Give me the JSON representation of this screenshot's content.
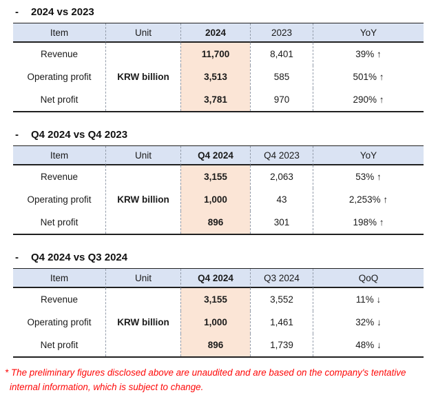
{
  "colors": {
    "header_bg": "#dae3f3",
    "highlight_bg": "#fbe5d6",
    "rule": "#1f1f1f",
    "divider": "#939caa",
    "text": "#1a1a1a",
    "footnote": "#fe0808"
  },
  "tables": [
    {
      "bullet": "-",
      "title": "2024 vs 2023",
      "columns": [
        "Item",
        "Unit",
        "2024",
        "2023",
        "YoY"
      ],
      "unit": "KRW billion",
      "rows": [
        {
          "item": "Revenue",
          "current": "11,700",
          "previous": "8,401",
          "change": "39% ↑"
        },
        {
          "item": "Operating profit",
          "current": "3,513",
          "previous": "585",
          "change": "501% ↑"
        },
        {
          "item": "Net profit",
          "current": "3,781",
          "previous": "970",
          "change": "290% ↑"
        }
      ]
    },
    {
      "bullet": "-",
      "title": "Q4 2024 vs Q4 2023",
      "columns": [
        "Item",
        "Unit",
        "Q4 2024",
        "Q4 2023",
        "YoY"
      ],
      "unit": "KRW billion",
      "rows": [
        {
          "item": "Revenue",
          "current": "3,155",
          "previous": "2,063",
          "change": "53% ↑"
        },
        {
          "item": "Operating profit",
          "current": "1,000",
          "previous": "43",
          "change": "2,253% ↑"
        },
        {
          "item": "Net profit",
          "current": "896",
          "previous": "301",
          "change": "198% ↑"
        }
      ]
    },
    {
      "bullet": "-",
      "title": "Q4 2024 vs Q3 2024",
      "columns": [
        "Item",
        "Unit",
        "Q4 2024",
        "Q3 2024",
        "QoQ"
      ],
      "unit": "KRW billion",
      "rows": [
        {
          "item": "Revenue",
          "current": "3,155",
          "previous": "3,552",
          "change": "11% ↓"
        },
        {
          "item": "Operating profit",
          "current": "1,000",
          "previous": "1,461",
          "change": "32% ↓"
        },
        {
          "item": "Net profit",
          "current": "896",
          "previous": "1,739",
          "change": "48% ↓"
        }
      ]
    }
  ],
  "footnote": {
    "marker": "*",
    "line1": "The preliminary figures disclosed above are unaudited and are based on the company's tentative",
    "line2": "internal information, which is subject to change."
  }
}
